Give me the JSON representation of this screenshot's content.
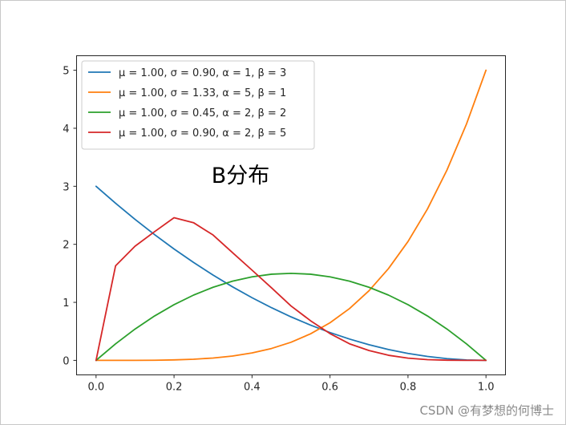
{
  "watermark": "CSDN @有梦想的何博士",
  "chart_data": {
    "type": "line",
    "title": "B分布",
    "xlabel": "",
    "ylabel": "",
    "xlim": [
      -0.05,
      1.05
    ],
    "ylim": [
      -0.25,
      5.25
    ],
    "xticks": [
      0.0,
      0.2,
      0.4,
      0.6,
      0.8,
      1.0
    ],
    "xtick_labels": [
      "0.0",
      "0.2",
      "0.4",
      "0.6",
      "0.8",
      "1.0"
    ],
    "yticks": [
      0,
      1,
      2,
      3,
      4,
      5
    ],
    "ytick_labels": [
      "0",
      "1",
      "2",
      "3",
      "4",
      "5"
    ],
    "grid": false,
    "legend_position": "upper-left",
    "x": [
      0.0,
      0.05,
      0.1,
      0.15,
      0.2,
      0.25,
      0.3,
      0.35,
      0.4,
      0.45,
      0.5,
      0.55,
      0.6,
      0.65,
      0.7,
      0.75,
      0.8,
      0.85,
      0.9,
      0.95,
      1.0
    ],
    "series": [
      {
        "name": "μ = 1.00, σ = 0.90, α = 1, β = 3",
        "color": "#1f77b4",
        "values": [
          3.0,
          2.7075,
          2.43,
          2.1675,
          1.92,
          1.6875,
          1.47,
          1.2675,
          1.08,
          0.9075,
          0.75,
          0.6075,
          0.48,
          0.3675,
          0.27,
          0.1875,
          0.12,
          0.0675,
          0.03,
          0.0075,
          0.0
        ]
      },
      {
        "name": "μ = 1.00, σ = 1.33, α = 5, β = 1",
        "color": "#ff7f0e",
        "values": [
          0.0,
          3e-05,
          0.0005,
          0.0025,
          0.008,
          0.0195,
          0.0405,
          0.075,
          0.128,
          0.205,
          0.3125,
          0.4575,
          0.648,
          0.8925,
          1.2005,
          1.582,
          2.048,
          2.61,
          3.2805,
          4.0725,
          5.0
        ]
      },
      {
        "name": "μ = 1.00, σ = 0.45, α = 2, β = 2",
        "color": "#2ca02c",
        "values": [
          0.0,
          0.285,
          0.54,
          0.765,
          0.96,
          1.125,
          1.26,
          1.365,
          1.44,
          1.485,
          1.5,
          1.485,
          1.44,
          1.365,
          1.26,
          1.125,
          0.96,
          0.765,
          0.54,
          0.285,
          0.0
        ]
      },
      {
        "name": "μ = 1.00, σ = 0.90, α = 2, β = 5",
        "color": "#d62728",
        "values": [
          0.0,
          1.629,
          1.968,
          2.218,
          2.458,
          2.373,
          2.161,
          1.857,
          1.555,
          1.25,
          0.9375,
          0.6834,
          0.4608,
          0.2859,
          0.1701,
          0.0879,
          0.0384,
          0.0128,
          0.003,
          0.0003,
          0.0
        ]
      }
    ]
  }
}
